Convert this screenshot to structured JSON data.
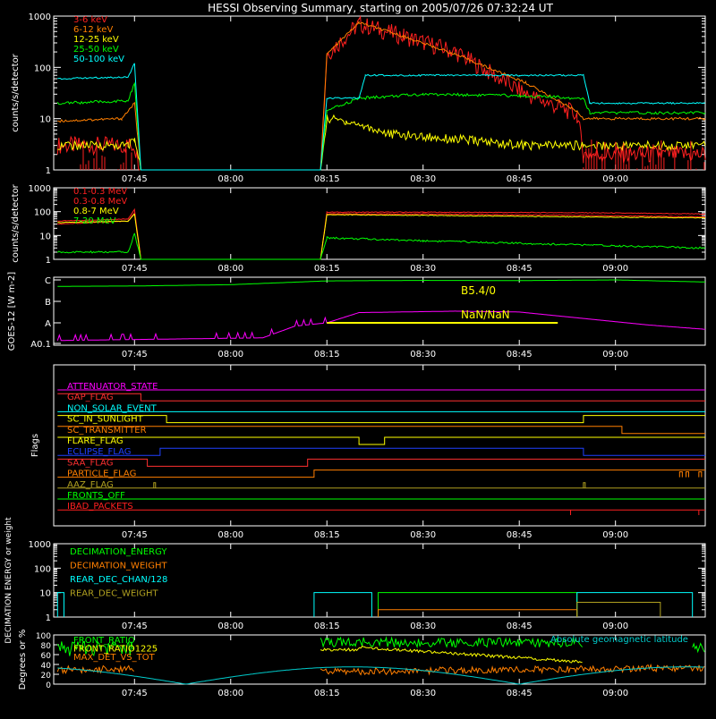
{
  "title": "HESSI Observing Summary, starting on 2005/07/26 07:32:24 UT",
  "time_axis": {
    "start": "07:32:24",
    "end": "09:14",
    "ticks": [
      "07:45",
      "08:00",
      "08:15",
      "08:30",
      "08:45",
      "09:00"
    ]
  },
  "chart_data": [
    {
      "type": "line",
      "title": "HESSI Observing Summary, starting on 2005/07/26 07:32:24 UT",
      "ylabel": "counts/s/detector",
      "yscale": "log",
      "ylim": [
        1,
        1000
      ],
      "yticks": [
        "1",
        "10",
        "100",
        "1000"
      ],
      "legend_position": "top-left",
      "series": [
        {
          "name": "3-6 keV",
          "color": "#ff2020",
          "x": [
            "07:33",
            "07:44",
            "07:45",
            "07:46",
            "08:14",
            "08:15",
            "08:20",
            "08:27",
            "08:35",
            "08:46",
            "08:54",
            "08:55",
            "09:14"
          ],
          "y": [
            3,
            3,
            3,
            1,
            1,
            180,
            700,
            400,
            200,
            30,
            12,
            2,
            2
          ]
        },
        {
          "name": "6-12 keV",
          "color": "#ff7f00",
          "x": [
            "07:33",
            "07:43",
            "07:45",
            "07:46",
            "08:14",
            "08:15",
            "08:20",
            "08:27",
            "08:35",
            "08:46",
            "08:54",
            "08:55",
            "09:14"
          ],
          "y": [
            9,
            10,
            20,
            1,
            1,
            180,
            750,
            400,
            180,
            50,
            14,
            10,
            10
          ]
        },
        {
          "name": "12-25 keV",
          "color": "#ffff00",
          "x": [
            "07:33",
            "07:44",
            "07:45",
            "07:46",
            "08:14",
            "08:15",
            "08:18",
            "08:25",
            "08:35",
            "08:46",
            "08:55",
            "09:14"
          ],
          "y": [
            3,
            3,
            4,
            1,
            1,
            10,
            9,
            5,
            4,
            3,
            3,
            3
          ]
        },
        {
          "name": "25-50 keV",
          "color": "#00ff00",
          "x": [
            "07:33",
            "07:44",
            "07:45",
            "07:46",
            "08:14",
            "08:15",
            "08:20",
            "08:30",
            "08:45",
            "08:55",
            "08:56",
            "09:14"
          ],
          "y": [
            20,
            22,
            50,
            1,
            1,
            14,
            25,
            30,
            28,
            25,
            13,
            13
          ]
        },
        {
          "name": "50-100 keV",
          "color": "#00ffff",
          "x": [
            "07:33",
            "07:44",
            "07:45",
            "07:46",
            "08:14",
            "08:15",
            "08:20",
            "08:21",
            "08:45",
            "08:55",
            "08:56",
            "09:14"
          ],
          "y": [
            60,
            65,
            120,
            1,
            1,
            25,
            25,
            70,
            70,
            70,
            20,
            20
          ]
        }
      ]
    },
    {
      "type": "line",
      "ylabel": "counts/s/detector",
      "yscale": "log",
      "ylim": [
        1,
        1000
      ],
      "yticks": [
        "1",
        "10",
        "100",
        "1000"
      ],
      "legend_position": "top-left",
      "series": [
        {
          "name": "0.1-0.3 MeV",
          "color": "#ff2020",
          "x": [
            "07:33",
            "07:44",
            "07:45",
            "07:46",
            "08:14",
            "08:15",
            "08:30",
            "08:55",
            "09:14"
          ],
          "y": [
            40,
            50,
            120,
            1,
            1,
            95,
            95,
            90,
            80
          ]
        },
        {
          "name": "0.3-0.8 MeV",
          "color": "#ff2020",
          "x": [
            "07:33",
            "07:44",
            "07:45",
            "07:46",
            "08:14",
            "08:15",
            "08:30",
            "08:55",
            "09:14"
          ],
          "y": [
            30,
            40,
            90,
            1,
            1,
            80,
            80,
            70,
            60
          ]
        },
        {
          "name": "0.8-7 MeV",
          "color": "#ffff00",
          "x": [
            "07:33",
            "07:44",
            "07:45",
            "07:46",
            "08:14",
            "08:15",
            "08:30",
            "08:55",
            "09:14"
          ],
          "y": [
            35,
            40,
            80,
            1,
            1,
            75,
            70,
            60,
            55
          ]
        },
        {
          "name": "7-20 MeV",
          "color": "#00ff00",
          "x": [
            "07:33",
            "07:44",
            "07:45",
            "07:46",
            "08:14",
            "08:15",
            "08:30",
            "08:55",
            "09:14"
          ],
          "y": [
            2,
            2,
            12,
            1,
            1,
            8,
            6,
            4,
            3
          ]
        }
      ]
    },
    {
      "type": "line",
      "ylabel": "GOES-12 [W m-2]",
      "yticks": [
        "A0.1",
        "A",
        "B",
        "C"
      ],
      "annotations": [
        "B5.4/0",
        "NaN/NaN"
      ],
      "series": [
        {
          "name": "",
          "color": "#00ff00",
          "x": [
            "07:33",
            "07:45",
            "08:00",
            "08:15",
            "08:30",
            "08:45",
            "09:00",
            "09:14"
          ],
          "y": [
            "B5",
            "B5.2",
            "B6",
            "B9",
            "B9.5",
            "B9.3",
            "C1",
            "B8"
          ]
        },
        {
          "name": "",
          "color": "#ff00ff",
          "x": [
            "07:33",
            "08:05",
            "08:10",
            "08:15",
            "08:20",
            "08:35",
            "08:45",
            "09:05",
            "09:14"
          ],
          "y": [
            "A0.15",
            "A0.2",
            "A0.7",
            "A1",
            "A3",
            "A3.5",
            "A3.2",
            "A0.8",
            "A0.5"
          ]
        },
        {
          "name": "",
          "color": "#ffff00",
          "x": [
            "08:15",
            "08:51"
          ],
          "y": [
            "A1",
            "A1"
          ]
        }
      ]
    },
    {
      "type": "table",
      "ylabel": "Flags",
      "rows": [
        {
          "label": "ATTENUATOR_STATE",
          "color": "#ff00ff"
        },
        {
          "label": "GAP_FLAG",
          "color": "#ff3030"
        },
        {
          "label": "NON_SOLAR_EVENT",
          "color": "#00ffff"
        },
        {
          "label": "SC_IN_SUNLIGHT",
          "color": "#ffff00"
        },
        {
          "label": "SC_TRANSMITTER",
          "color": "#ff7f00"
        },
        {
          "label": "FLARE_FLAG",
          "color": "#ffff00"
        },
        {
          "label": "ECLIPSE_FLAG",
          "color": "#2040ff"
        },
        {
          "label": "SAA_FLAG",
          "color": "#ff3030"
        },
        {
          "label": "PARTICLE_FLAG",
          "color": "#ff7f00"
        },
        {
          "label": "AAZ_FLAG",
          "color": "#b0a020"
        },
        {
          "label": "FRONTS_OFF",
          "color": "#00ff00"
        },
        {
          "label": "IBAD_PACKETS",
          "color": "#ff2020"
        }
      ]
    },
    {
      "type": "line",
      "ylabel": "DECIMATION ENERGY or weight",
      "yscale": "log",
      "ylim": [
        1,
        1000
      ],
      "yticks": [
        "1",
        "10",
        "100",
        "1000"
      ],
      "legend_position": "top-left",
      "series": [
        {
          "name": "DECIMATION_ENERGY",
          "color": "#00ff00"
        },
        {
          "name": "DECIMATION_WEIGHT",
          "color": "#ff7f00"
        },
        {
          "name": "REAR_DEC_CHAN/128",
          "color": "#00ffff"
        },
        {
          "name": "REAR_DEC_WEIGHT",
          "color": "#b0a020"
        }
      ]
    },
    {
      "type": "line",
      "ylabel": "Degrees or %",
      "ylim": [
        0,
        100
      ],
      "yticks": [
        "0",
        "20",
        "40",
        "60",
        "80",
        "100"
      ],
      "legend_position": "top-left",
      "annotations": [
        "Absolute geomagnetic latitude"
      ],
      "series": [
        {
          "name": "FRONT_RATIO",
          "color": "#00ff00"
        },
        {
          "name": "FRONT_RATIO1225",
          "color": "#ffff00"
        },
        {
          "name": "MAX_DET_VS_TOT",
          "color": "#ff7f00"
        },
        {
          "name": "Absolute geomagnetic latitude",
          "color": "#00cccc"
        }
      ]
    }
  ]
}
